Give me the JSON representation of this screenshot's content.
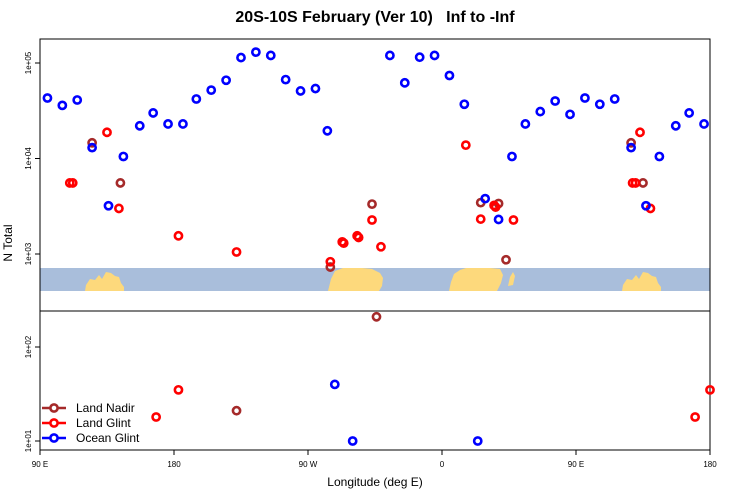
{
  "chart_data": {
    "type": "scatter",
    "title": "20S-10S February (Ver 10)   Inf to -Inf",
    "xlabel": "Longitude (deg E)",
    "ylabel": "N Total",
    "x_ticks": [
      {
        "value": 90,
        "label": "90 E"
      },
      {
        "value": 180,
        "label": "180"
      },
      {
        "value": 270,
        "label": "90 W"
      },
      {
        "value": 360,
        "label": "0"
      },
      {
        "value": 450,
        "label": "90 E"
      },
      {
        "value": 540,
        "label": "180"
      }
    ],
    "xlim": [
      90,
      540
    ],
    "upper_panel": {
      "scale": "log",
      "y_ticks": [
        {
          "value": 1000,
          "label": "1e+03"
        },
        {
          "value": 10000,
          "label": "1e+04"
        },
        {
          "value": 100000,
          "label": "1e+05"
        }
      ]
    },
    "lower_panel": {
      "scale": "log",
      "y_ticks": [
        {
          "value": 10,
          "label": "1e+01"
        },
        {
          "value": 100,
          "label": "1e+02"
        }
      ]
    },
    "map_strip": {
      "ocean_color": "#a9bedb",
      "land_color": "#fdd97c"
    },
    "legend": {
      "position": "bottom-left"
    },
    "series": [
      {
        "name": "Land Nadir",
        "color": "#a52a2a",
        "points": [
          {
            "x": 125,
            "y": 14600,
            "panel": "upper"
          },
          {
            "x": 144,
            "y": 5550,
            "panel": "upper"
          },
          {
            "x": 222,
            "y": 21,
            "panel": "lower"
          },
          {
            "x": 285,
            "y": 730,
            "panel": "upper"
          },
          {
            "x": 313,
            "y": 3330,
            "panel": "upper"
          },
          {
            "x": 316,
            "y": 220,
            "panel": "upper"
          },
          {
            "x": 386,
            "y": 3450,
            "panel": "upper"
          },
          {
            "x": 398,
            "y": 3380,
            "panel": "upper"
          },
          {
            "x": 403,
            "y": 870,
            "panel": "upper"
          },
          {
            "x": 487,
            "y": 14600,
            "panel": "upper"
          },
          {
            "x": 495,
            "y": 5550,
            "panel": "upper"
          }
        ]
      },
      {
        "name": "Land Glint",
        "color": "#ff0000",
        "points": [
          {
            "x": 110,
            "y": 5550,
            "panel": "upper"
          },
          {
            "x": 112,
            "y": 5550,
            "panel": "upper"
          },
          {
            "x": 135,
            "y": 18800,
            "panel": "upper"
          },
          {
            "x": 143,
            "y": 3000,
            "panel": "upper"
          },
          {
            "x": 168,
            "y": 18,
            "panel": "lower"
          },
          {
            "x": 183,
            "y": 35,
            "panel": "lower"
          },
          {
            "x": 183,
            "y": 1550,
            "panel": "upper"
          },
          {
            "x": 222,
            "y": 1050,
            "panel": "upper"
          },
          {
            "x": 285,
            "y": 830,
            "panel": "upper"
          },
          {
            "x": 293,
            "y": 1340,
            "panel": "upper"
          },
          {
            "x": 294,
            "y": 1300,
            "panel": "upper"
          },
          {
            "x": 303,
            "y": 1550,
            "panel": "upper"
          },
          {
            "x": 304,
            "y": 1490,
            "panel": "upper"
          },
          {
            "x": 313,
            "y": 2270,
            "panel": "upper"
          },
          {
            "x": 319,
            "y": 1190,
            "panel": "upper"
          },
          {
            "x": 376,
            "y": 13800,
            "panel": "upper"
          },
          {
            "x": 386,
            "y": 2320,
            "panel": "upper"
          },
          {
            "x": 395,
            "y": 3230,
            "panel": "upper"
          },
          {
            "x": 396,
            "y": 3100,
            "panel": "upper"
          },
          {
            "x": 408,
            "y": 2270,
            "panel": "upper"
          },
          {
            "x": 488,
            "y": 5550,
            "panel": "upper"
          },
          {
            "x": 490,
            "y": 5550,
            "panel": "upper"
          },
          {
            "x": 493,
            "y": 18800,
            "panel": "upper"
          },
          {
            "x": 500,
            "y": 3000,
            "panel": "upper"
          },
          {
            "x": 530,
            "y": 18,
            "panel": "lower"
          },
          {
            "x": 540,
            "y": 35,
            "panel": "lower"
          }
        ]
      },
      {
        "name": "Ocean Glint",
        "color": "#0000ff",
        "points": [
          {
            "x": 95,
            "y": 43000,
            "panel": "upper"
          },
          {
            "x": 105,
            "y": 36000,
            "panel": "upper"
          },
          {
            "x": 115,
            "y": 41000,
            "panel": "upper"
          },
          {
            "x": 125,
            "y": 13000,
            "panel": "upper"
          },
          {
            "x": 136,
            "y": 3200,
            "panel": "upper"
          },
          {
            "x": 146,
            "y": 10500,
            "panel": "upper"
          },
          {
            "x": 157,
            "y": 22000,
            "panel": "upper"
          },
          {
            "x": 166,
            "y": 30000,
            "panel": "upper"
          },
          {
            "x": 176,
            "y": 23000,
            "panel": "upper"
          },
          {
            "x": 186,
            "y": 23000,
            "panel": "upper"
          },
          {
            "x": 195,
            "y": 42000,
            "panel": "upper"
          },
          {
            "x": 205,
            "y": 52000,
            "panel": "upper"
          },
          {
            "x": 215,
            "y": 66000,
            "panel": "upper"
          },
          {
            "x": 225,
            "y": 114000,
            "panel": "upper"
          },
          {
            "x": 235,
            "y": 130000,
            "panel": "upper"
          },
          {
            "x": 245,
            "y": 120000,
            "panel": "upper"
          },
          {
            "x": 255,
            "y": 67000,
            "panel": "upper"
          },
          {
            "x": 265,
            "y": 51000,
            "panel": "upper"
          },
          {
            "x": 275,
            "y": 54000,
            "panel": "upper"
          },
          {
            "x": 283,
            "y": 19500,
            "panel": "upper"
          },
          {
            "x": 288,
            "y": 40,
            "panel": "lower"
          },
          {
            "x": 300,
            "y": 10,
            "panel": "lower"
          },
          {
            "x": 325,
            "y": 120000,
            "panel": "upper"
          },
          {
            "x": 335,
            "y": 62000,
            "panel": "upper"
          },
          {
            "x": 345,
            "y": 115000,
            "panel": "upper"
          },
          {
            "x": 355,
            "y": 120000,
            "panel": "upper"
          },
          {
            "x": 365,
            "y": 74000,
            "panel": "upper"
          },
          {
            "x": 375,
            "y": 37000,
            "panel": "upper"
          },
          {
            "x": 384,
            "y": 10,
            "panel": "lower"
          },
          {
            "x": 389,
            "y": 3800,
            "panel": "upper"
          },
          {
            "x": 398,
            "y": 2300,
            "panel": "upper"
          },
          {
            "x": 407,
            "y": 10500,
            "panel": "upper"
          },
          {
            "x": 416,
            "y": 23000,
            "panel": "upper"
          },
          {
            "x": 426,
            "y": 31000,
            "panel": "upper"
          },
          {
            "x": 436,
            "y": 40000,
            "panel": "upper"
          },
          {
            "x": 446,
            "y": 29000,
            "panel": "upper"
          },
          {
            "x": 456,
            "y": 43000,
            "panel": "upper"
          },
          {
            "x": 466,
            "y": 37000,
            "panel": "upper"
          },
          {
            "x": 476,
            "y": 42000,
            "panel": "upper"
          },
          {
            "x": 487,
            "y": 13000,
            "panel": "upper"
          },
          {
            "x": 497,
            "y": 3200,
            "panel": "upper"
          },
          {
            "x": 506,
            "y": 10500,
            "panel": "upper"
          },
          {
            "x": 517,
            "y": 22000,
            "panel": "upper"
          },
          {
            "x": 526,
            "y": 30000,
            "panel": "upper"
          },
          {
            "x": 536,
            "y": 23000,
            "panel": "upper"
          }
        ]
      }
    ]
  }
}
